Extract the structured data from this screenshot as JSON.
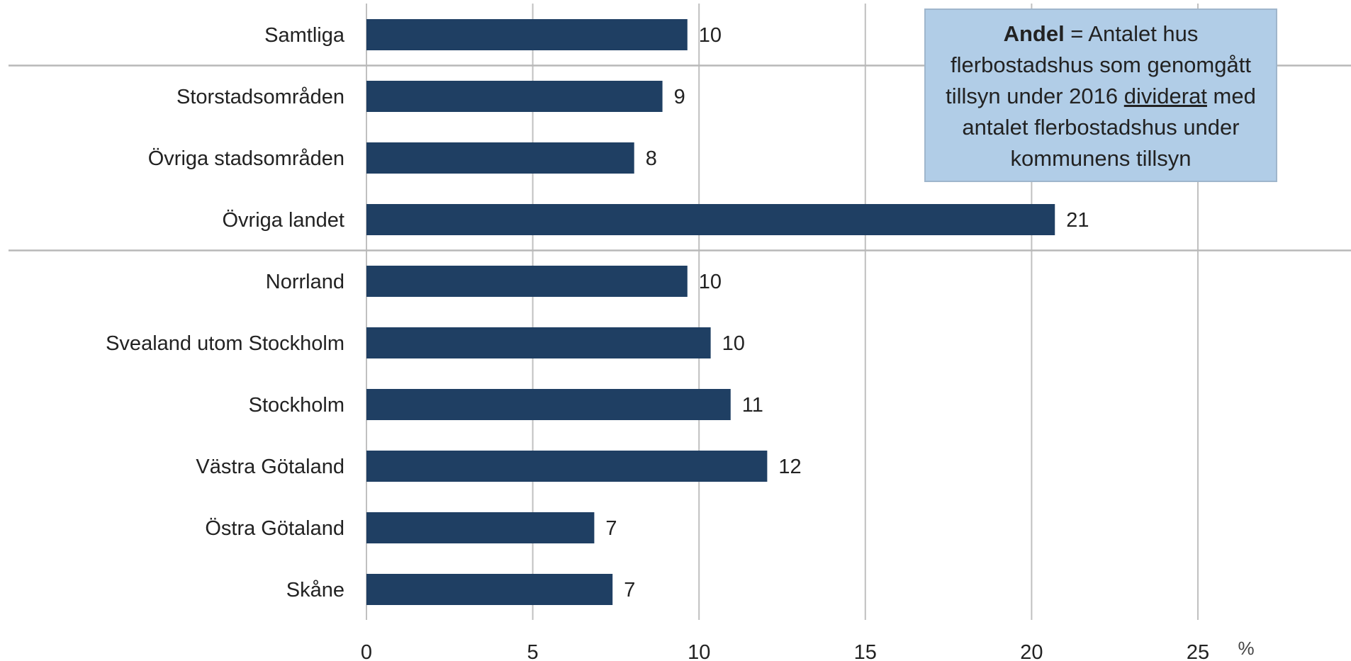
{
  "chart_data": {
    "type": "bar",
    "orientation": "horizontal",
    "categories": [
      "Samtliga",
      "Storstadsområden",
      "Övriga stadsområden",
      "Övriga landet",
      "Norrland",
      "Svealand utom Stockholm",
      "Stockholm",
      "Västra Götaland",
      "Östra Götaland",
      "Skåne"
    ],
    "values": [
      9.65,
      8.9,
      8.05,
      20.7,
      9.65,
      10.35,
      10.95,
      12.05,
      6.85,
      7.4
    ],
    "data_labels": [
      "10",
      "9",
      "8",
      "21",
      "10",
      "10",
      "11",
      "12",
      "7",
      "7"
    ],
    "xlim": [
      0,
      25
    ],
    "xticks": [
      0,
      5,
      10,
      15,
      20,
      25
    ],
    "xlabel": "",
    "ylabel": "",
    "unit": "%",
    "title": "",
    "grid": true,
    "group_separators_after": [
      "Samtliga",
      "Övriga landet"
    ],
    "bar_color": "#1f3f63",
    "grid_color": "#c0c0c0",
    "separator_color": "#b8b8b8"
  },
  "annotation": {
    "bold": "Andel",
    "part1": " = Antalet hus flerbostadshus som genomgått tillsyn under 2016 ",
    "underlined": "dividerat",
    "part2": " med antalet flerbostadshus under kommunens tillsyn",
    "background": "#b1cde7"
  }
}
